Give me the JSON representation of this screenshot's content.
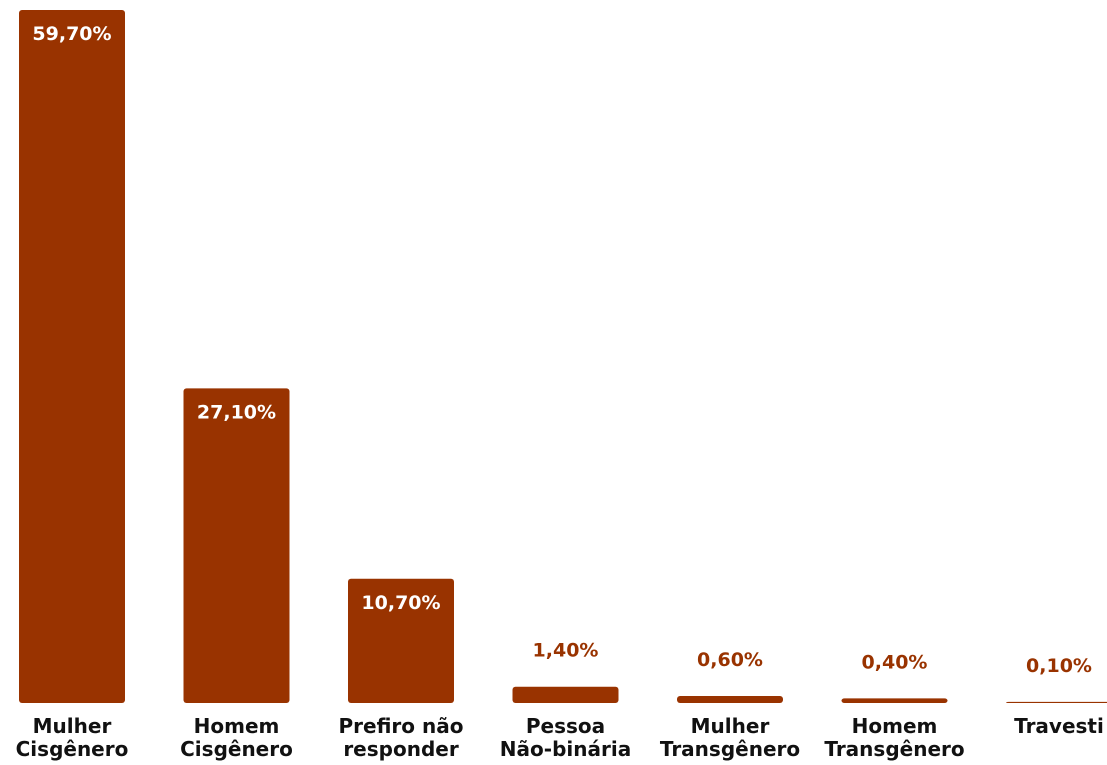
{
  "chart_data": {
    "type": "bar",
    "categories": [
      [
        "Mulher",
        "Cisgênero"
      ],
      [
        "Homem",
        "Cisgênero"
      ],
      [
        "Prefiro não",
        "responder"
      ],
      [
        "Pessoa",
        "Não-binária"
      ],
      [
        "Mulher",
        "Transgênero"
      ],
      [
        "Homem",
        "Transgênero"
      ],
      [
        "Travesti"
      ]
    ],
    "values": [
      59.7,
      27.1,
      10.7,
      1.4,
      0.6,
      0.4,
      0.1
    ],
    "value_labels": [
      "59,70%",
      "27,10%",
      "10,70%",
      "1,40%",
      "0,60%",
      "0,40%",
      "0,10%"
    ],
    "ylim": [
      0,
      59.7
    ],
    "grid": false,
    "legend": "none",
    "bar_color": "#993300"
  }
}
